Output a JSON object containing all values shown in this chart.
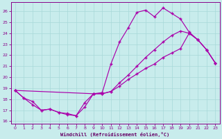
{
  "bg_color": "#c8ecec",
  "grid_color": "#a8d8d8",
  "line_color": "#aa00aa",
  "xlabel": "Windchill (Refroidissement éolien,°C)",
  "xlim": [
    -0.5,
    23.5
  ],
  "ylim": [
    15.8,
    26.8
  ],
  "xticks": [
    0,
    1,
    2,
    3,
    4,
    5,
    6,
    7,
    8,
    9,
    10,
    11,
    12,
    13,
    14,
    15,
    16,
    17,
    18,
    19,
    20,
    21,
    22,
    23
  ],
  "yticks": [
    16,
    17,
    18,
    19,
    20,
    21,
    22,
    23,
    24,
    25,
    26
  ],
  "curve1_x": [
    0,
    1,
    2,
    3,
    4,
    5,
    6,
    7,
    8,
    9,
    10,
    11,
    12,
    13,
    14,
    15,
    16,
    17,
    18,
    19,
    20,
    21,
    22,
    23
  ],
  "curve1_y": [
    18.8,
    18.1,
    17.8,
    17.0,
    17.1,
    16.8,
    16.7,
    16.5,
    17.7,
    18.5,
    18.6,
    21.2,
    23.2,
    24.5,
    25.9,
    26.1,
    25.5,
    26.3,
    25.8,
    25.3,
    24.1,
    23.4,
    22.5,
    21.3
  ],
  "curve2_x": [
    0,
    1,
    2,
    3,
    4,
    5,
    6,
    7,
    8,
    9,
    10,
    11,
    12,
    13,
    14,
    15,
    16,
    17,
    18,
    19,
    20,
    21,
    22,
    23
  ],
  "curve2_y": [
    18.8,
    18.1,
    17.5,
    17.0,
    17.1,
    16.8,
    16.6,
    16.5,
    17.3,
    18.5,
    18.5,
    18.7,
    19.5,
    20.2,
    21.0,
    21.8,
    22.5,
    23.2,
    23.8,
    24.2,
    24.0,
    23.4,
    22.5,
    21.3
  ],
  "curve3_x": [
    0,
    9,
    10,
    11,
    12,
    13,
    14,
    15,
    16,
    17,
    18,
    19,
    20,
    21,
    22,
    23
  ],
  "curve3_y": [
    18.8,
    18.5,
    18.5,
    18.7,
    19.2,
    19.8,
    20.3,
    20.8,
    21.2,
    21.8,
    22.2,
    22.6,
    24.0,
    23.4,
    22.5,
    21.3
  ]
}
